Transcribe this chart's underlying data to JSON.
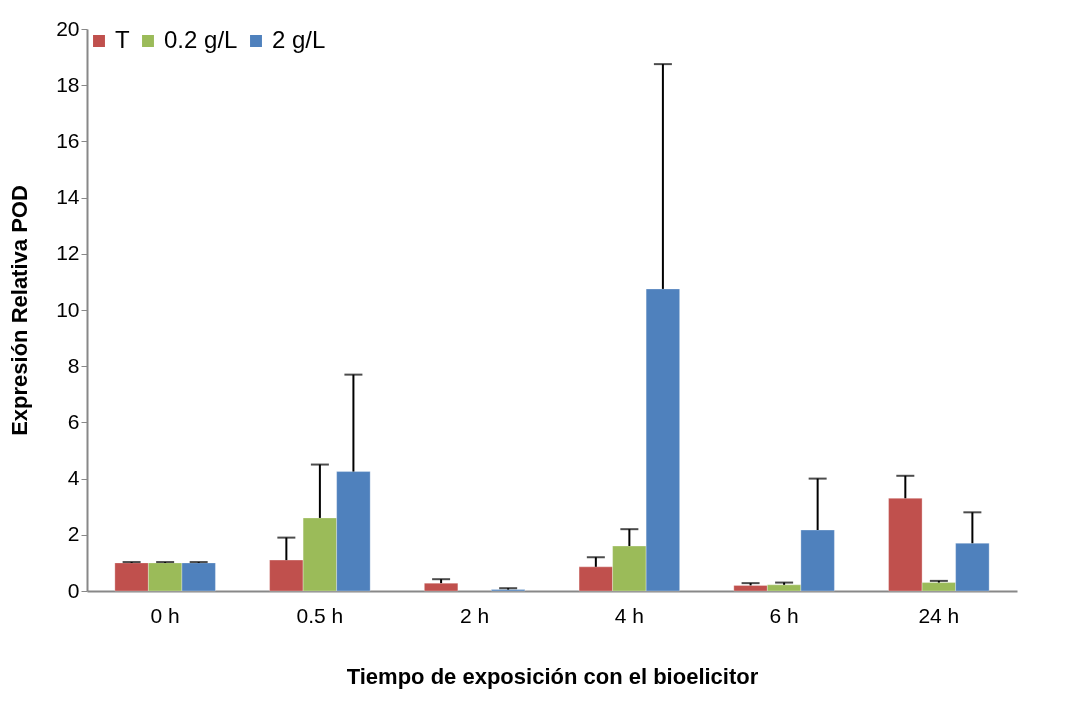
{
  "chart_data": {
    "type": "bar",
    "xlabel": "Tiempo de exposición con el bioelicitor",
    "ylabel": "Expresión Relativa POD",
    "categories": [
      "0 h",
      "0.5 h",
      "2 h",
      "4 h",
      "6 h",
      "24 h"
    ],
    "series": [
      {
        "name": "T",
        "color": "#c0504d",
        "values": [
          1.0,
          1.1,
          0.28,
          0.86,
          0.2,
          3.3
        ],
        "errors": [
          [
            1.0,
            1.03
          ],
          [
            1.1,
            1.9
          ],
          [
            0.28,
            0.42
          ],
          [
            0.86,
            1.2
          ],
          [
            0.2,
            0.28
          ],
          [
            3.3,
            4.1
          ]
        ]
      },
      {
        "name": "0.2 g/L",
        "color": "#9bbb59",
        "values": [
          1.0,
          2.6,
          null,
          1.6,
          0.22,
          0.3
        ],
        "errors": [
          [
            1.0,
            1.03
          ],
          [
            2.6,
            4.5
          ],
          null,
          [
            1.6,
            2.2
          ],
          [
            0.22,
            0.3
          ],
          [
            0.3,
            0.36
          ]
        ]
      },
      {
        "name": "2 g/L",
        "color": "#4f81bd",
        "values": [
          1.0,
          4.25,
          0.05,
          10.75,
          2.17,
          1.7
        ],
        "errors": [
          [
            1.0,
            1.03
          ],
          [
            4.25,
            7.7
          ],
          [
            0.05,
            0.1
          ],
          [
            10.75,
            18.75
          ],
          [
            2.17,
            4.0
          ],
          [
            1.7,
            2.8
          ]
        ]
      }
    ],
    "ylim": [
      0,
      20
    ],
    "yticks": [
      0,
      2,
      4,
      6,
      8,
      10,
      12,
      14,
      16,
      18,
      20
    ],
    "grid": false,
    "legend": "top left"
  }
}
